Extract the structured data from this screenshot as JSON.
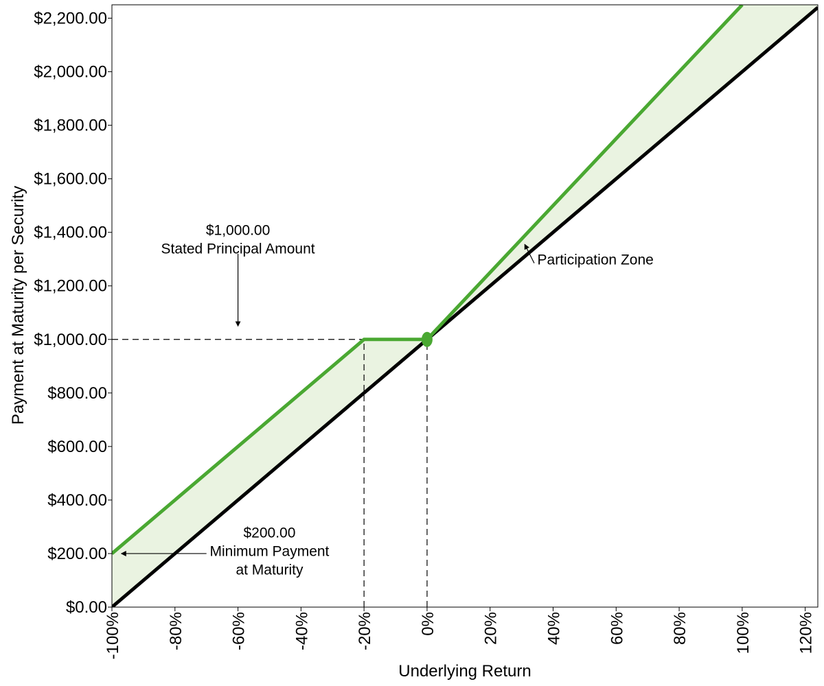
{
  "chart_data": {
    "type": "line",
    "xlabel": "Underlying Return",
    "ylabel": "Payment at Maturity per Security",
    "xlim": [
      -100,
      124
    ],
    "ylim": [
      0,
      2250
    ],
    "x_ticks": [
      -100,
      -80,
      -60,
      -40,
      -20,
      0,
      20,
      40,
      60,
      80,
      100,
      120
    ],
    "x_tick_labels": [
      "-100%",
      "-80%",
      "-60%",
      "-40%",
      "-20%",
      "0%",
      "20%",
      "40%",
      "60%",
      "80%",
      "100%",
      "120%"
    ],
    "y_ticks": [
      0,
      200,
      400,
      600,
      800,
      1000,
      1200,
      1400,
      1600,
      1800,
      2000,
      2200
    ],
    "y_tick_labels": [
      "$0.00",
      "$200.00",
      "$400.00",
      "$600.00",
      "$800.00",
      "$1,000.00",
      "$1,200.00",
      "$1,400.00",
      "$1,600.00",
      "$1,800.00",
      "$2,000.00",
      "$2,200.00"
    ],
    "grid": false,
    "series": [
      {
        "color": "#4aa832",
        "x": [
          -100,
          -20,
          0,
          100
        ],
        "y": [
          200,
          1000,
          1000,
          2250
        ]
      },
      {
        "color": "#000000",
        "x": [
          -100,
          124
        ],
        "y": [
          0,
          2240
        ]
      }
    ],
    "shaded_area_color": "#eaf3e1",
    "marker": {
      "x": 0,
      "y": 1000,
      "color": "#4aa832"
    },
    "reference_lines": [
      {
        "orientation": "horizontal",
        "y": 1000,
        "x_from": -100,
        "x_to": -20
      },
      {
        "orientation": "vertical",
        "x": -20,
        "y_from": 0,
        "y_to": 1000
      },
      {
        "orientation": "vertical",
        "x": 0,
        "y_from": 0,
        "y_to": 1000
      }
    ],
    "annotations": [
      {
        "lines": [
          "$1,000.00",
          "Stated Principal Amount"
        ],
        "text_x": -60,
        "text_y": 1390,
        "arrow_from": [
          -60,
          1320
        ],
        "arrow_to": [
          -60,
          1050
        ]
      },
      {
        "lines": [
          "Participation Zone"
        ],
        "text_x": 35,
        "text_y": 1280,
        "arrow_from": [
          34,
          1285
        ],
        "arrow_to": [
          31,
          1355
        ]
      },
      {
        "lines": [
          "$200.00",
          "Minimum Payment",
          "at Maturity"
        ],
        "text_x": -50,
        "text_y": 260,
        "arrow_from": [
          -70,
          200
        ],
        "arrow_to": [
          -97,
          200
        ]
      }
    ]
  }
}
